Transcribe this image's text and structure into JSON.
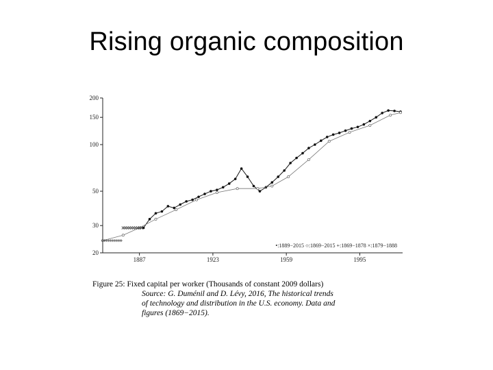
{
  "slide": {
    "title": "Rising organic composition"
  },
  "chart_data": {
    "type": "line",
    "scale_y": "log",
    "ylim": [
      20,
      200
    ],
    "xlim": [
      1869,
      2016
    ],
    "y_ticks": [
      200,
      150,
      100,
      50,
      30,
      20
    ],
    "x_ticks": [
      1887,
      1923,
      1959,
      1995
    ],
    "grid": false,
    "legend_position": "bottom-right",
    "legend": [
      "•:1889−2015",
      "○:1869−2015",
      "+:1869−1878",
      "×:1879−1888"
    ],
    "series": [
      {
        "name": "•:1889−2015",
        "marker": "dot",
        "x": [
          1889,
          1892,
          1895,
          1898,
          1901,
          1904,
          1907,
          1910,
          1913,
          1916,
          1919,
          1922,
          1925,
          1928,
          1931,
          1934,
          1937,
          1940,
          1943,
          1946,
          1949,
          1952,
          1955,
          1958,
          1961,
          1964,
          1967,
          1970,
          1973,
          1976,
          1979,
          1982,
          1985,
          1988,
          1991,
          1994,
          1997,
          2000,
          2003,
          2006,
          2009,
          2012,
          2015
        ],
        "y": [
          29,
          33,
          36,
          37,
          40,
          39,
          41,
          43,
          44,
          46,
          48,
          50,
          51,
          53,
          56,
          60,
          70,
          62,
          54,
          50,
          53,
          57,
          62,
          68,
          76,
          82,
          88,
          95,
          100,
          106,
          112,
          116,
          119,
          123,
          127,
          130,
          135,
          142,
          150,
          160,
          166,
          165,
          163
        ]
      },
      {
        "name": "○:1869−2015",
        "marker": "circle",
        "x": [
          1869,
          1879,
          1887,
          1895,
          1905,
          1915,
          1925,
          1935,
          1945,
          1952,
          1960,
          1970,
          1980,
          1990,
          2000,
          2010,
          2015
        ],
        "y": [
          24,
          26,
          29,
          33,
          38,
          44,
          49,
          52,
          52,
          54,
          62,
          80,
          105,
          120,
          133,
          155,
          161
        ]
      },
      {
        "name": "+:1869−1878",
        "marker": "plus",
        "x": [
          1869,
          1870,
          1871,
          1872,
          1873,
          1874,
          1875,
          1876,
          1877,
          1878
        ],
        "y": [
          24,
          24,
          24,
          24,
          24,
          24,
          24,
          24,
          24,
          24
        ]
      },
      {
        "name": "×:1879−1888",
        "marker": "cross",
        "x": [
          1879,
          1880,
          1881,
          1882,
          1883,
          1884,
          1885,
          1886,
          1887,
          1888
        ],
        "y": [
          29,
          29,
          29,
          29,
          29,
          29,
          29,
          29,
          29,
          29
        ]
      }
    ]
  },
  "caption": {
    "figure_label": "Figure 25:",
    "figure_text": "Fixed capital per worker (Thousands of constant 2009 dollars)",
    "source_line1": "Source: G. Duménil and D. Lévy, 2016, The historical trends",
    "source_line2": "of technology and distribution in the U.S. economy. Data and",
    "source_line3": "figures (1869−2015)."
  }
}
